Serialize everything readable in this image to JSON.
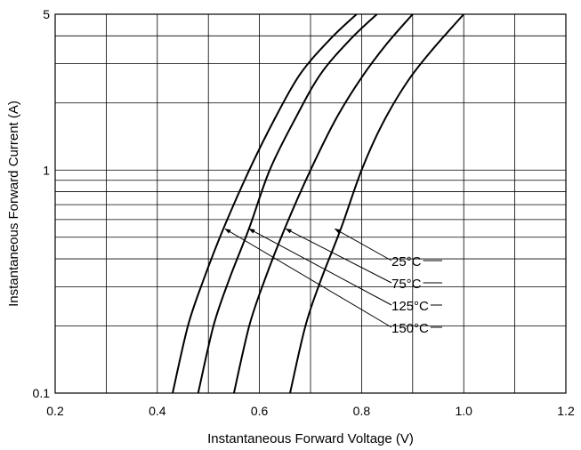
{
  "chart_data": {
    "type": "line",
    "title": "",
    "xlabel": "Instantaneous Forward Voltage (V)",
    "ylabel": "Instantaneous Forward Current (A)",
    "xlim": [
      0.2,
      1.2
    ],
    "ylim": [
      0.1,
      5
    ],
    "y_scale": "log",
    "grid": true,
    "legend": "none",
    "x_ticks": [
      0.2,
      0.4,
      0.6,
      0.8,
      1.0,
      1.2
    ],
    "x_tick_labels": [
      "0.2",
      "0.4",
      "0.6",
      "0.8",
      "1.0",
      "1.2"
    ],
    "y_tick_labels": [
      {
        "value": 0.1,
        "label": "0.1"
      },
      {
        "value": 1,
        "label": "1"
      },
      {
        "value": 5,
        "label": "5"
      }
    ],
    "x_gridlines": [
      0.3,
      0.4,
      0.5,
      0.6,
      0.7,
      0.8,
      0.9,
      1.0,
      1.1
    ],
    "y_gridlines": [
      0.2,
      0.3,
      0.4,
      0.5,
      0.6,
      0.7,
      0.8,
      0.9,
      1,
      2,
      3,
      4
    ],
    "series": [
      {
        "name": "25°C",
        "points": [
          [
            0.66,
            0.1
          ],
          [
            0.69,
            0.2
          ],
          [
            0.72,
            0.32
          ],
          [
            0.76,
            0.55
          ],
          [
            0.8,
            1.0
          ],
          [
            0.84,
            1.6
          ],
          [
            0.89,
            2.5
          ],
          [
            0.94,
            3.5
          ],
          [
            1.0,
            5
          ]
        ]
      },
      {
        "name": "75°C",
        "points": [
          [
            0.55,
            0.1
          ],
          [
            0.58,
            0.2
          ],
          [
            0.61,
            0.32
          ],
          [
            0.65,
            0.55
          ],
          [
            0.7,
            1.0
          ],
          [
            0.75,
            1.7
          ],
          [
            0.8,
            2.6
          ],
          [
            0.85,
            3.7
          ],
          [
            0.9,
            5
          ]
        ]
      },
      {
        "name": "125°C",
        "points": [
          [
            0.48,
            0.1
          ],
          [
            0.51,
            0.2
          ],
          [
            0.54,
            0.32
          ],
          [
            0.58,
            0.55
          ],
          [
            0.62,
            1.0
          ],
          [
            0.67,
            1.7
          ],
          [
            0.72,
            2.7
          ],
          [
            0.78,
            3.9
          ],
          [
            0.83,
            5
          ]
        ]
      },
      {
        "name": "150°C",
        "points": [
          [
            0.43,
            0.1
          ],
          [
            0.46,
            0.2
          ],
          [
            0.49,
            0.32
          ],
          [
            0.53,
            0.55
          ],
          [
            0.58,
            1.0
          ],
          [
            0.63,
            1.7
          ],
          [
            0.68,
            2.7
          ],
          [
            0.74,
            3.9
          ],
          [
            0.79,
            5
          ]
        ]
      }
    ],
    "annotations": [
      {
        "label": "25°C",
        "arrow_to": [
          0.746,
          0.55
        ]
      },
      {
        "label": "75°C",
        "arrow_to": [
          0.65,
          0.55
        ]
      },
      {
        "label": "125°C",
        "arrow_to": [
          0.578,
          0.55
        ]
      },
      {
        "label": "150°C",
        "arrow_to": [
          0.531,
          0.55
        ]
      }
    ]
  }
}
